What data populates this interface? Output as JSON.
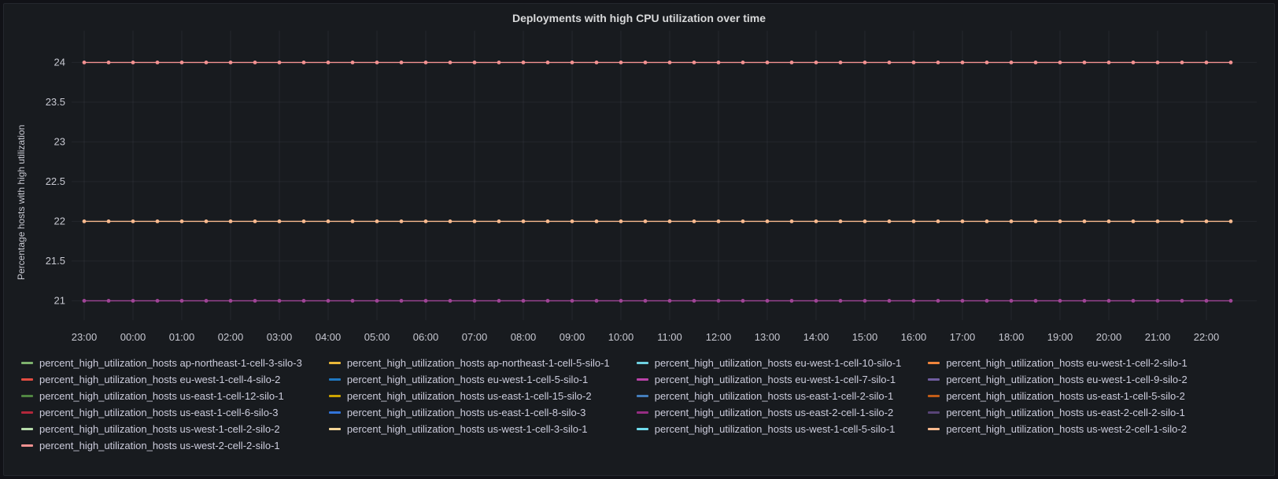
{
  "panel": {
    "title": "Deployments with high CPU utilization over time",
    "y_axis_label": "Percentage hosts with high utilization"
  },
  "colors": {
    "page_background": "#111217",
    "panel_background": "#181b1f",
    "panel_border": "#25282e",
    "grid_line": "rgba(204,204,220,0.07)",
    "title_text": "#d8d9da",
    "axis_text": "#c7c8d1",
    "legend_text": "#ccccdc"
  },
  "chart_data": {
    "type": "line",
    "title": "Deployments with high CPU utilization over time",
    "xlabel": "",
    "ylabel": "Percentage hosts with high utilization",
    "x_ticks": [
      "23:00",
      "00:00",
      "01:00",
      "02:00",
      "03:00",
      "04:00",
      "05:00",
      "06:00",
      "07:00",
      "08:00",
      "09:00",
      "10:00",
      "11:00",
      "12:00",
      "13:00",
      "14:00",
      "15:00",
      "16:00",
      "17:00",
      "18:00",
      "19:00",
      "20:00",
      "21:00",
      "22:00"
    ],
    "y_ticks": [
      "21",
      "21.5",
      "22",
      "22.5",
      "23",
      "23.5",
      "24"
    ],
    "y_tick_values": [
      21,
      21.5,
      22,
      22.5,
      23,
      23.5,
      24
    ],
    "ylim": [
      20.75,
      24.4
    ],
    "grid": true,
    "legend_position": "bottom",
    "marker_interval_minutes": 30,
    "points_per_line": 48,
    "visible_lines": [
      {
        "value": 24,
        "color": "#F29191"
      },
      {
        "value": 22,
        "color": "#F9BA8F"
      },
      {
        "value": 21,
        "color": "#A04597"
      }
    ],
    "series_legend": [
      {
        "label": "percent_high_utilization_hosts ap-northeast-1-cell-3-silo-3",
        "color": "#7EB26D"
      },
      {
        "label": "percent_high_utilization_hosts ap-northeast-1-cell-5-silo-1",
        "color": "#EAB839"
      },
      {
        "label": "percent_high_utilization_hosts eu-west-1-cell-10-silo-1",
        "color": "#6ED0E0"
      },
      {
        "label": "percent_high_utilization_hosts eu-west-1-cell-2-silo-1",
        "color": "#EF843C"
      },
      {
        "label": "percent_high_utilization_hosts eu-west-1-cell-4-silo-2",
        "color": "#E24D42"
      },
      {
        "label": "percent_high_utilization_hosts eu-west-1-cell-5-silo-1",
        "color": "#1F78C1"
      },
      {
        "label": "percent_high_utilization_hosts eu-west-1-cell-7-silo-1",
        "color": "#BA43A9"
      },
      {
        "label": "percent_high_utilization_hosts eu-west-1-cell-9-silo-2",
        "color": "#705DA0"
      },
      {
        "label": "percent_high_utilization_hosts us-east-1-cell-12-silo-1",
        "color": "#508642"
      },
      {
        "label": "percent_high_utilization_hosts us-east-1-cell-15-silo-2",
        "color": "#CCA300"
      },
      {
        "label": "percent_high_utilization_hosts us-east-1-cell-2-silo-1",
        "color": "#447EBC"
      },
      {
        "label": "percent_high_utilization_hosts us-east-1-cell-5-silo-2",
        "color": "#C15C17"
      },
      {
        "label": "percent_high_utilization_hosts us-east-1-cell-6-silo-3",
        "color": "#B2273B"
      },
      {
        "label": "percent_high_utilization_hosts us-east-1-cell-8-silo-3",
        "color": "#3274D9"
      },
      {
        "label": "percent_high_utilization_hosts us-east-2-cell-1-silo-2",
        "color": "#962D82"
      },
      {
        "label": "percent_high_utilization_hosts us-east-2-cell-2-silo-1",
        "color": "#584477"
      },
      {
        "label": "percent_high_utilization_hosts us-west-1-cell-2-silo-2",
        "color": "#B7DBAB"
      },
      {
        "label": "percent_high_utilization_hosts us-west-1-cell-3-silo-1",
        "color": "#F4D598"
      },
      {
        "label": "percent_high_utilization_hosts us-west-1-cell-5-silo-1",
        "color": "#70DBED"
      },
      {
        "label": "percent_high_utilization_hosts us-west-2-cell-1-silo-2",
        "color": "#F9BA8F"
      },
      {
        "label": "percent_high_utilization_hosts us-west-2-cell-2-silo-1",
        "color": "#F29191"
      }
    ]
  }
}
